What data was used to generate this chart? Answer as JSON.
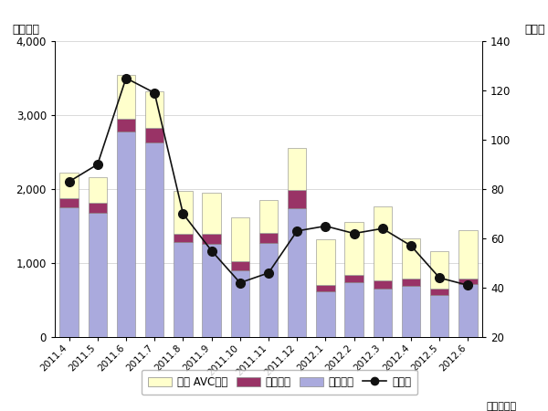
{
  "months": [
    "2011.4",
    "2011.5",
    "2011.6",
    "2011.7",
    "2011.8",
    "2011.9",
    "2011.10",
    "2011.11",
    "2011.12",
    "2012.1",
    "2012.2",
    "2012.3",
    "2012.4",
    "2012.5",
    "2012.6"
  ],
  "eizo": [
    1750,
    1680,
    2780,
    2630,
    1280,
    1260,
    900,
    1270,
    1740,
    620,
    740,
    650,
    690,
    570,
    710
  ],
  "onsei": [
    130,
    130,
    170,
    200,
    110,
    130,
    120,
    140,
    250,
    80,
    100,
    110,
    100,
    90,
    75
  ],
  "car_avc": [
    340,
    350,
    590,
    490,
    580,
    560,
    600,
    440,
    560,
    620,
    710,
    1000,
    540,
    500,
    660
  ],
  "yoy": [
    83,
    90,
    125,
    119,
    70,
    55,
    42,
    46,
    63,
    65,
    62,
    64,
    57,
    44,
    41
  ],
  "eizo_color": "#aaaadd",
  "onsei_color": "#993366",
  "car_avc_color": "#ffffcc",
  "yoy_color": "#111111",
  "bar_edge_color": "#888888",
  "left_ylim": [
    0,
    4000
  ],
  "right_ylim": [
    20,
    140
  ],
  "left_ylabel": "（億円）",
  "right_ylabel": "（％）",
  "xlabel": "（年・月）",
  "left_yticks": [
    0,
    1000,
    2000,
    3000,
    4000
  ],
  "right_yticks": [
    20,
    40,
    60,
    80,
    100,
    120,
    140
  ],
  "legend_labels": [
    "カー AVC機器",
    "音声機器",
    "映像機器",
    "前年比"
  ]
}
